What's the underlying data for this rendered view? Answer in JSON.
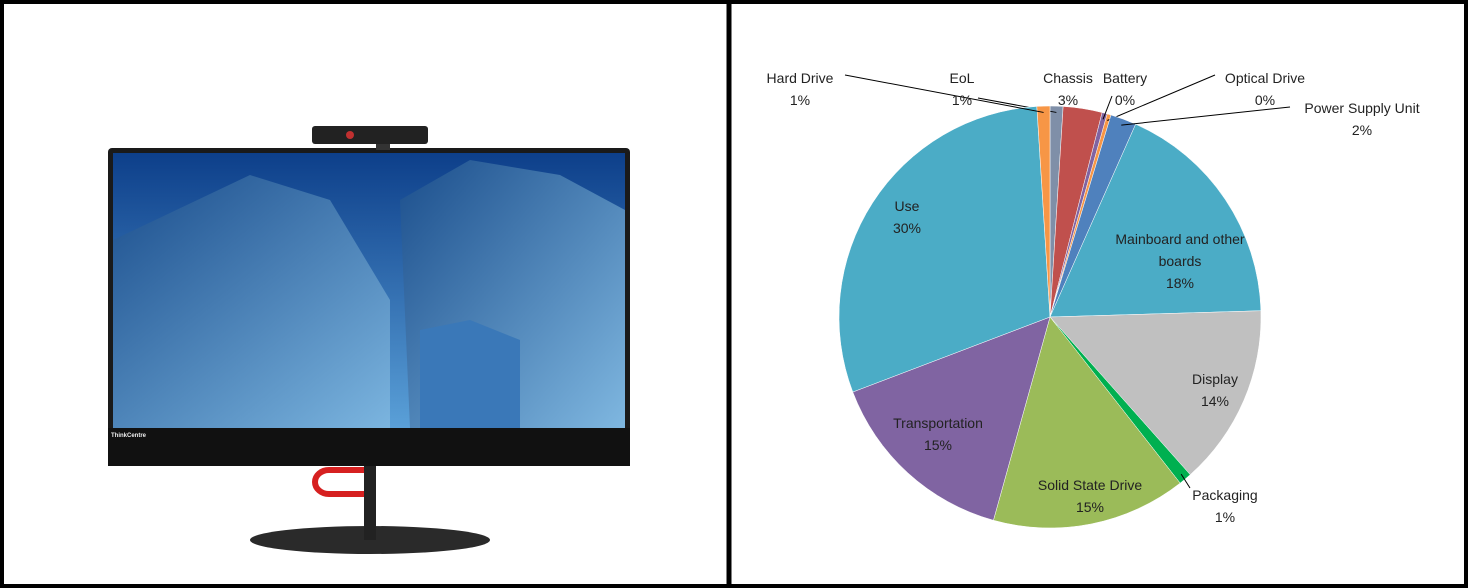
{
  "brand": "ThinkCentre",
  "chart_data": {
    "type": "pie",
    "categories": [
      "EoL",
      "Chassis",
      "Battery",
      "Optical Drive",
      "Power Supply Unit",
      "Mainboard and other boards",
      "Display",
      "Packaging",
      "Solid State Drive",
      "Transportation",
      "Use",
      "Hard Drive"
    ],
    "values": [
      1,
      3,
      0.4,
      0.3,
      2,
      18,
      14,
      1,
      15,
      15,
      30,
      1
    ],
    "value_labels": [
      "1%",
      "3%",
      "0%",
      "0%",
      "2%",
      "18%",
      "14%",
      "1%",
      "15%",
      "15%",
      "30%",
      "1%"
    ],
    "colors": [
      "#7f8fa8",
      "#c0504d",
      "#8064a2",
      "#f79646",
      "#4f81bd",
      "#4bacc6",
      "#c0c0c0",
      "#00b050",
      "#9bbb59",
      "#8064a2",
      "#4bacc6",
      "#f79646"
    ]
  }
}
